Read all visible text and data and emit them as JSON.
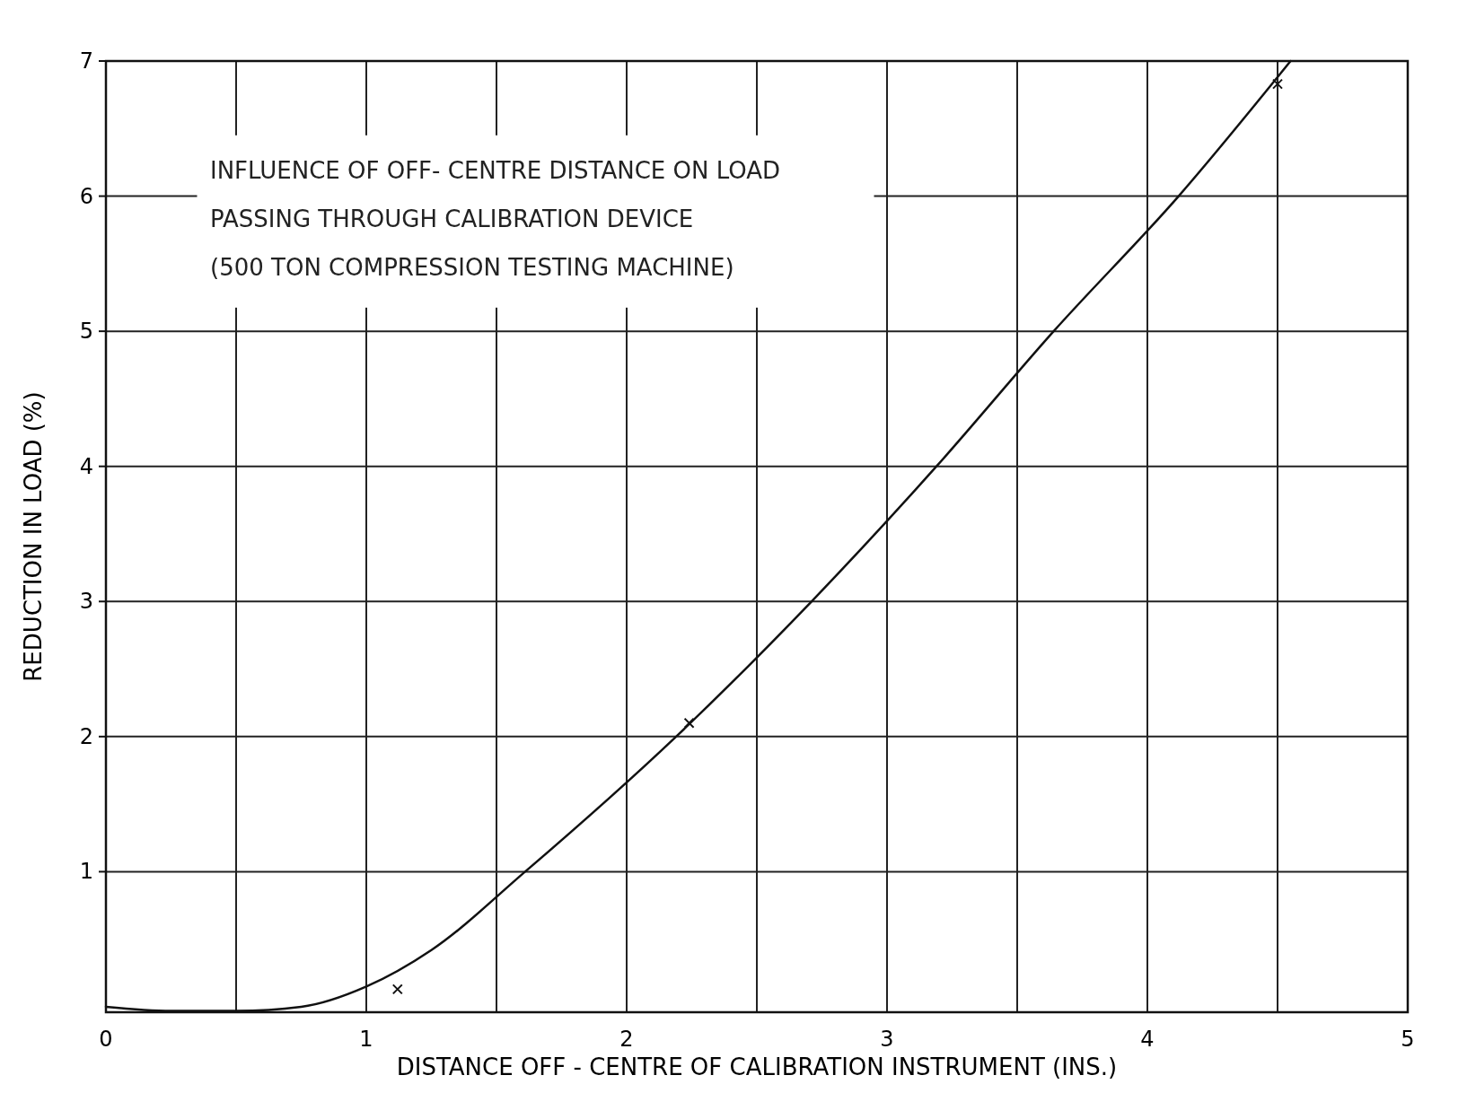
{
  "chart_data": {
    "type": "line",
    "title": "INFLUENCE OF OFF- CENTRE DISTANCE ON LOAD\nPASSING THROUGH CALIBRATION DEVICE\n(500 TON COMPRESSION TESTING MACHINE)",
    "xlabel": "DISTANCE OFF - CENTRE OF CALIBRATION INSTRUMENT   (INS.)",
    "ylabel": "REDUCTION IN LOAD   (%)",
    "xlim": [
      0,
      5
    ],
    "ylim": [
      -0.04,
      7
    ],
    "xticks": [
      0,
      {
        "value": 0.5,
        "label": null
      },
      1,
      {
        "value": 1.5,
        "label": null
      },
      2,
      {
        "value": 2.5,
        "label": null
      },
      3,
      {
        "value": 3.5,
        "label": null
      },
      4,
      {
        "value": 4.5,
        "label": null
      },
      5
    ],
    "yticks": [
      1,
      2,
      3,
      4,
      5,
      6,
      7
    ],
    "grid": true,
    "series": [
      {
        "color": "#111111",
        "line_style": "solid",
        "x": [
          0,
          0.25,
          0.5,
          0.75,
          1,
          1.25,
          1.61,
          2.19,
          2.71,
          3.19,
          3.64,
          4.12,
          4.55
        ],
        "values": [
          0,
          -0.03,
          -0.03,
          0,
          0.15,
          0.42,
          1,
          2,
          3,
          4,
          5,
          6,
          7
        ]
      },
      {
        "type": "scatter",
        "color": "#111111",
        "marker": "cross",
        "x": [
          1.12,
          2.24,
          4.5
        ],
        "values": [
          0.13,
          2.1,
          6.83
        ]
      }
    ]
  }
}
